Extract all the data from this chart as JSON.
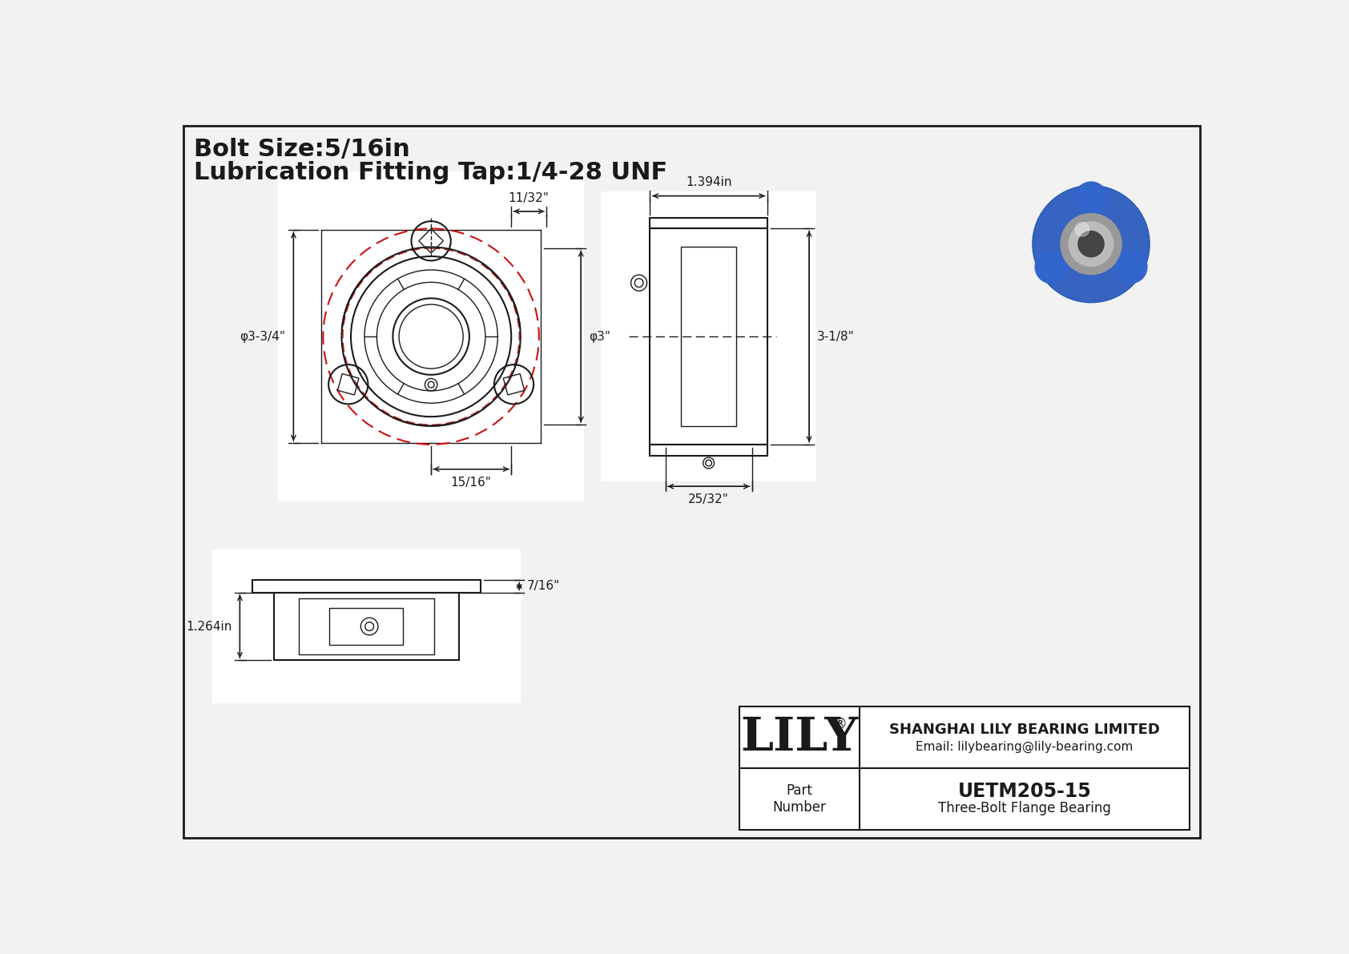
{
  "bg_color": "#f2f2f2",
  "white": "#ffffff",
  "line_color": "#1a1a1a",
  "red_color": "#cc1111",
  "title_line1": "Bolt Size:5/16in",
  "title_line2": "Lubrication Fitting Tap:1/4-28 UNF",
  "dim_1132": "11/32\"",
  "dim_3_34": "φ3-3/4\"",
  "dim_3": "φ3\"",
  "dim_1516": "15/16\"",
  "dim_1394": "1.394in",
  "dim_318": "3-1/8\"",
  "dim_2532": "25/32\"",
  "dim_716": "7/16\"",
  "dim_1264": "1.264in",
  "company": "SHANGHAI LILY BEARING LIMITED",
  "email": "Email: lilybearing@lily-bearing.com",
  "part_label": "Part\nNumber",
  "part_number": "UETM205-15",
  "part_desc": "Three-Bolt Flange Bearing",
  "lily_text": "LILY",
  "reg": "®"
}
